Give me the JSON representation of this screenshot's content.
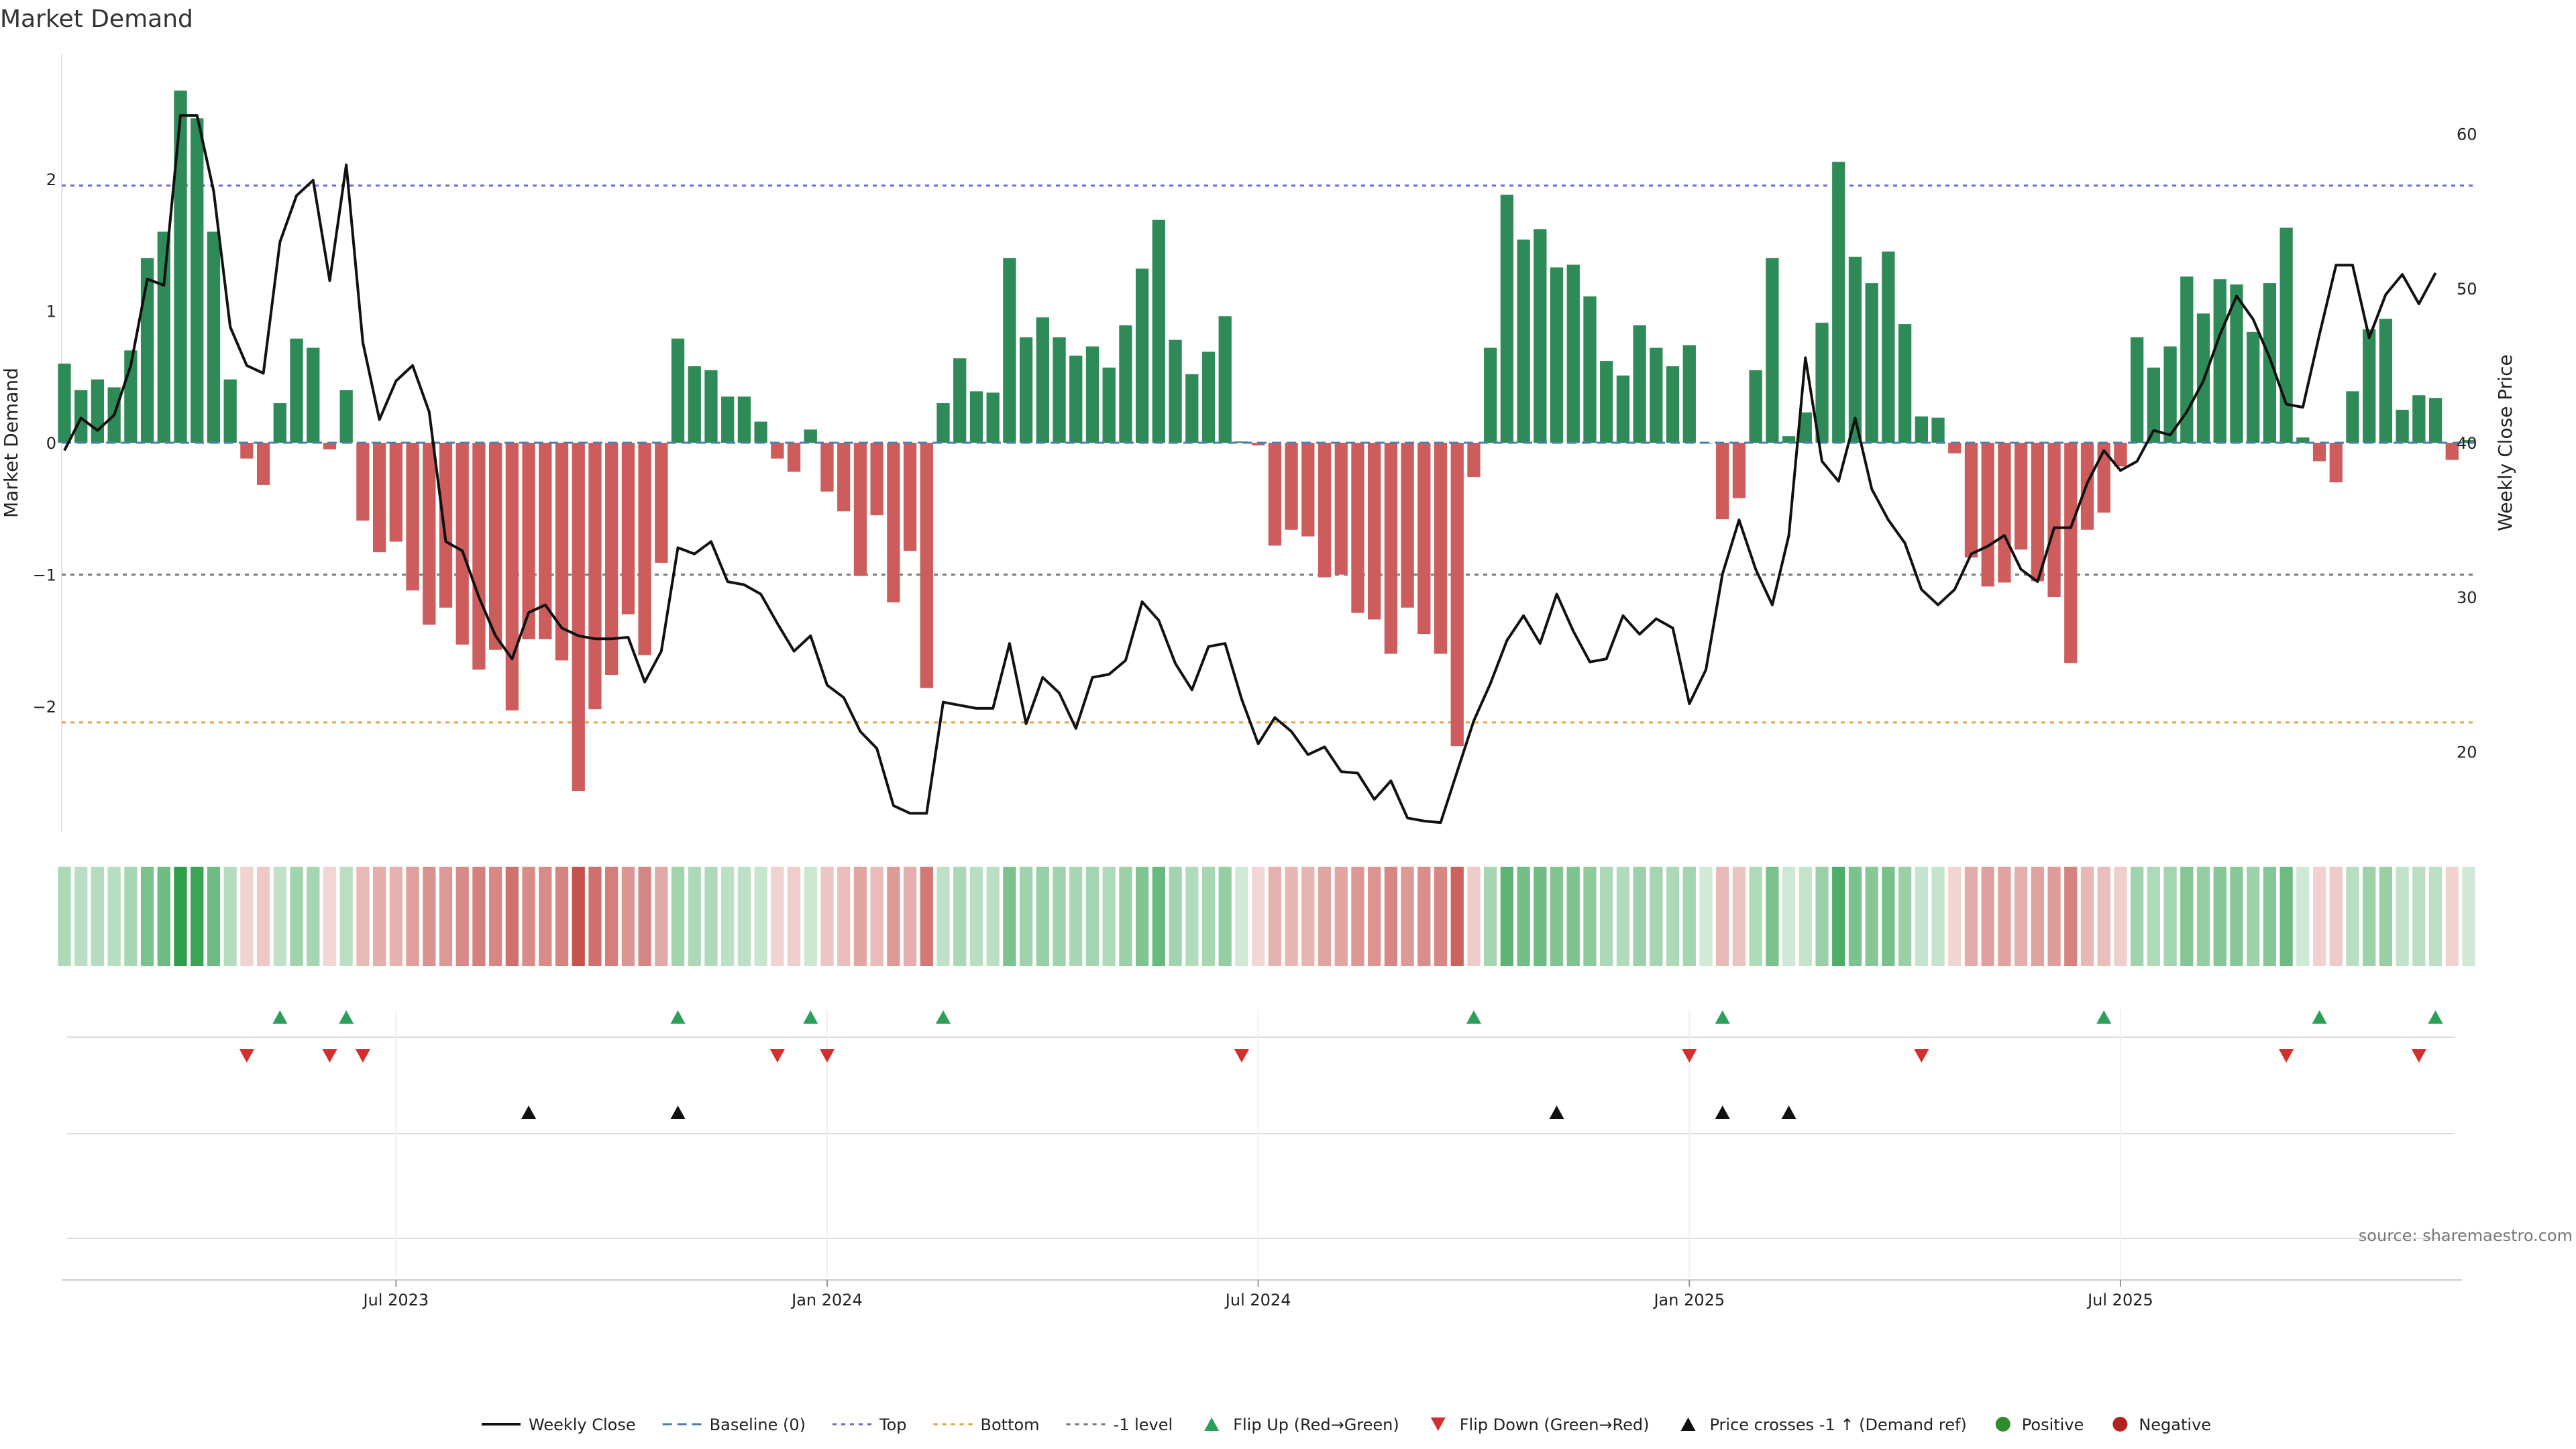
{
  "chart_data": {
    "type": "bar",
    "title": "Market Demand",
    "ylabel_left": "Market Demand",
    "ylabel_right": "Weekly Close Price",
    "source": "source: sharemaestro.com",
    "left_ylim": [
      -2.95,
      2.95
    ],
    "right_ylim": [
      14.8,
      65.2
    ],
    "left_ticks": [
      {
        "v": 2,
        "label": "2"
      },
      {
        "v": 1,
        "label": "1"
      },
      {
        "v": 0,
        "label": "0"
      },
      {
        "v": -1,
        "label": "−1"
      },
      {
        "v": -2,
        "label": "−2"
      }
    ],
    "right_ticks": [
      {
        "v": 60,
        "label": "60"
      },
      {
        "v": 50,
        "label": "50"
      },
      {
        "v": 40,
        "label": "40"
      },
      {
        "v": 30,
        "label": "30"
      },
      {
        "v": 20,
        "label": "20"
      }
    ],
    "x_ticks": [
      {
        "i": 20,
        "label": "Jul 2023"
      },
      {
        "i": 46,
        "label": "Jan 2024"
      },
      {
        "i": 72,
        "label": "Jul 2024"
      },
      {
        "i": 98,
        "label": "Jan 2025"
      },
      {
        "i": 124,
        "label": "Jul 2025"
      }
    ],
    "reference_lines": {
      "top": 1.95,
      "bottom": -2.12,
      "minus_one": -1,
      "baseline": 0
    },
    "colors": {
      "positive": "#2e8b57",
      "negative": "#cd5c5c",
      "price": "#111111",
      "top": "#6b6bd6",
      "bottom": "#e8a040",
      "minus_one": "#777777",
      "baseline": "#4a7fb0",
      "flip_up": "#2ca05a",
      "flip_down": "#d32f2f",
      "cross": "#111111",
      "positive_dot": "#2e8b2e",
      "negative_dot": "#b22222"
    },
    "demand": [
      0.6,
      0.4,
      0.48,
      0.42,
      0.7,
      1.4,
      1.6,
      2.67,
      2.46,
      1.6,
      0.48,
      -0.12,
      -0.32,
      0.3,
      0.79,
      0.72,
      -0.05,
      0.4,
      -0.59,
      -0.83,
      -0.75,
      -1.12,
      -1.38,
      -1.25,
      -1.53,
      -1.72,
      -1.57,
      -2.03,
      -1.49,
      -1.49,
      -1.65,
      -2.64,
      -2.02,
      -1.76,
      -1.3,
      -1.61,
      -0.91,
      0.79,
      0.58,
      0.55,
      0.35,
      0.35,
      0.16,
      -0.12,
      -0.22,
      0.1,
      -0.37,
      -0.52,
      -1.01,
      -0.55,
      -1.21,
      -0.82,
      -1.86,
      0.3,
      0.64,
      0.39,
      0.38,
      1.4,
      0.8,
      0.95,
      0.8,
      0.66,
      0.73,
      0.57,
      0.89,
      1.32,
      1.69,
      0.78,
      0.52,
      0.69,
      0.96,
      0.01,
      -0.02,
      -0.78,
      -0.66,
      -0.71,
      -1.02,
      -1.0,
      -1.29,
      -1.34,
      -1.6,
      -1.25,
      -1.45,
      -1.6,
      -2.3,
      -0.26,
      0.72,
      1.88,
      1.54,
      1.62,
      1.33,
      1.35,
      1.11,
      0.62,
      0.51,
      0.89,
      0.72,
      0.58,
      0.74,
      0.0,
      -0.58,
      -0.42,
      0.55,
      1.4,
      0.05,
      0.23,
      0.91,
      2.13,
      1.41,
      1.21,
      1.45,
      0.9,
      0.2,
      0.19,
      -0.08,
      -0.87,
      -1.09,
      -1.06,
      -0.81,
      -1.05,
      -1.17,
      -1.67,
      -0.66,
      -0.53,
      -0.18,
      0.8,
      0.57,
      0.73,
      1.26,
      0.98,
      1.24,
      1.2,
      0.84,
      1.21,
      1.63,
      0.04,
      -0.14,
      -0.3,
      0.39,
      0.86,
      0.94,
      0.25,
      0.36,
      0.34,
      -0.13,
      0.02
    ],
    "price": [
      39.5,
      41.6,
      40.8,
      41.8,
      45.0,
      50.6,
      50.2,
      61.2,
      61.2,
      56.3,
      47.5,
      45.0,
      44.5,
      53.0,
      56.0,
      57.0,
      50.5,
      58.0,
      46.5,
      41.5,
      44.0,
      45.0,
      42.0,
      33.6,
      33.0,
      30.0,
      27.5,
      26.0,
      29.0,
      29.5,
      28.0,
      27.5,
      27.3,
      27.3,
      27.4,
      24.5,
      26.5,
      33.2,
      32.8,
      33.6,
      31.0,
      30.8,
      30.2,
      28.3,
      26.5,
      27.5,
      24.3,
      23.5,
      21.3,
      20.2,
      16.5,
      16.0,
      16.0,
      23.2,
      23.0,
      22.8,
      22.8,
      27.0,
      21.8,
      24.8,
      23.8,
      21.5,
      24.8,
      25.0,
      25.9,
      29.7,
      28.5,
      25.7,
      24.0,
      26.8,
      27.0,
      23.4,
      20.5,
      22.2,
      21.3,
      19.8,
      20.3,
      18.7,
      18.6,
      16.9,
      18.1,
      15.7,
      15.5,
      15.4,
      18.7,
      22.0,
      24.4,
      27.2,
      28.8,
      27.0,
      30.2,
      27.8,
      25.8,
      26.0,
      28.8,
      27.6,
      28.6,
      28.0,
      23.1,
      25.3,
      31.5,
      35.0,
      31.8,
      29.5,
      34.0,
      45.5,
      38.8,
      37.5,
      41.6,
      37.0,
      35.0,
      33.5,
      30.5,
      29.5,
      30.5,
      32.8,
      33.3,
      34.0,
      31.8,
      31.0,
      34.5,
      34.5,
      37.4,
      39.5,
      38.2,
      38.8,
      40.8,
      40.5,
      42.0,
      44.0,
      47.0,
      49.5,
      48.0,
      45.5,
      42.5,
      42.3,
      47.0,
      51.5,
      51.5,
      46.8,
      49.6,
      50.9,
      49.0,
      51.0
    ],
    "flip_up": [
      13,
      17,
      37,
      45,
      53,
      85,
      100,
      123,
      136,
      143
    ],
    "flip_down": [
      11,
      16,
      18,
      43,
      46,
      71,
      98,
      112,
      134,
      142
    ],
    "price_crosses": [
      28,
      37,
      90,
      100,
      104
    ],
    "legend": [
      {
        "key": "price",
        "label": "Weekly Close"
      },
      {
        "key": "baseline",
        "label": "Baseline (0)"
      },
      {
        "key": "top",
        "label": "Top"
      },
      {
        "key": "bottom",
        "label": "Bottom"
      },
      {
        "key": "minus_one",
        "label": "-1 level"
      },
      {
        "key": "flip_up",
        "label": "Flip Up (Red→Green)"
      },
      {
        "key": "flip_down",
        "label": "Flip Down (Green→Red)"
      },
      {
        "key": "cross",
        "label": "Price crosses -1 ↑ (Demand ref)"
      },
      {
        "key": "positive_dot",
        "label": "Positive"
      },
      {
        "key": "negative_dot",
        "label": "Negative"
      }
    ]
  }
}
